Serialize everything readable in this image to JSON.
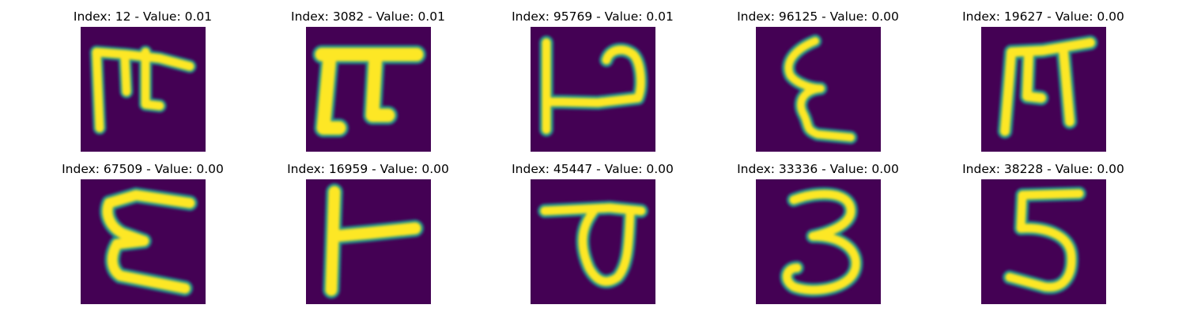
{
  "panels": [
    {
      "title": "Index: 12 - Value: 0.01",
      "glyph": "glyph-1-icon"
    },
    {
      "title": "Index: 3082 - Value: 0.01",
      "glyph": "glyph-2-icon"
    },
    {
      "title": "Index: 95769 - Value: 0.01",
      "glyph": "glyph-3-icon"
    },
    {
      "title": "Index: 96125 - Value: 0.00",
      "glyph": "glyph-4-icon"
    },
    {
      "title": "Index: 19627 - Value: 0.00",
      "glyph": "glyph-5-icon"
    },
    {
      "title": "Index: 67509 - Value: 0.00",
      "glyph": "glyph-6-icon"
    },
    {
      "title": "Index: 16959 - Value: 0.00",
      "glyph": "glyph-7-icon"
    },
    {
      "title": "Index: 45447 - Value: 0.00",
      "glyph": "glyph-8-icon"
    },
    {
      "title": "Index: 33336 - Value: 0.00",
      "glyph": "glyph-9-icon"
    },
    {
      "title": "Index: 38228 - Value: 0.00",
      "glyph": "glyph-10-icon"
    }
  ],
  "colors": {
    "background": "#440154",
    "stroke_outer": "#21918c",
    "stroke_mid": "#5ec962",
    "stroke_inner": "#fde725"
  }
}
